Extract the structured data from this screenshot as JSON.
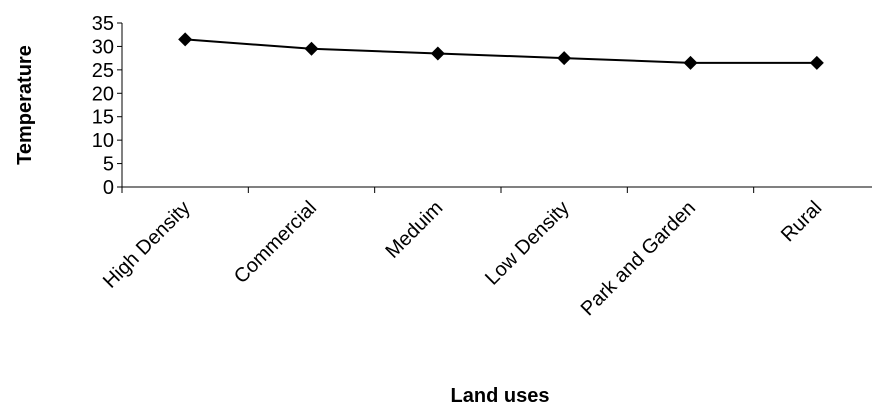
{
  "chart_data": {
    "type": "line",
    "title": "",
    "xlabel": "Land uses",
    "ylabel": "Temperature",
    "categories": [
      "High Density",
      "Commercial",
      "Meduim",
      "Low Density",
      "Park and Garden",
      "Rural"
    ],
    "series": [
      {
        "values": [
          31.5,
          29.5,
          28.5,
          27.5,
          26.5,
          26.5
        ]
      }
    ],
    "ylim": [
      0,
      35
    ],
    "yticks": [
      0,
      5,
      10,
      15,
      20,
      25,
      30,
      35
    ],
    "grid": false,
    "legend": "none",
    "marker": "diamond",
    "line_color": "#000000"
  }
}
